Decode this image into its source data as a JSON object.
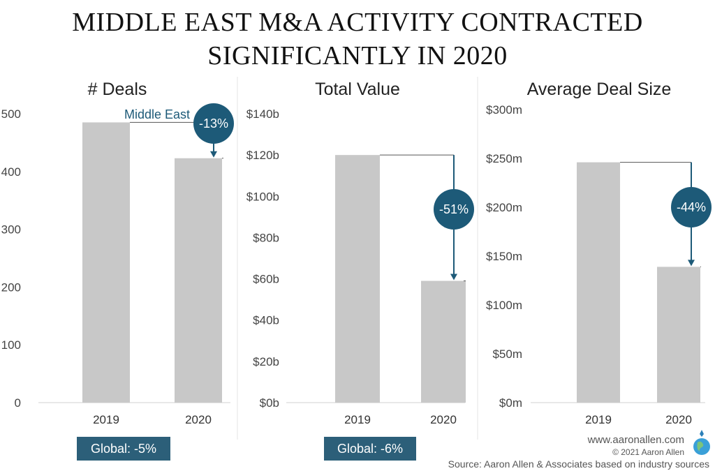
{
  "title": {
    "line1": "MIDDLE EAST M&A ACTIVITY CONTRACTED",
    "line2": "SIGNIFICANTLY IN 2020"
  },
  "colors": {
    "bar": "#c8c8c8",
    "accent": "#1d5a78",
    "badge": "#2c5f79"
  },
  "chart_data": [
    {
      "type": "bar",
      "title": "# Deals",
      "categories": [
        "2019",
        "2020"
      ],
      "values": [
        485,
        423
      ],
      "ylim": [
        0,
        500
      ],
      "yticks": [
        "0",
        "100",
        "200",
        "300",
        "400",
        "500"
      ],
      "change_label": "-13%",
      "region_label": "Middle East",
      "global_label": "Global: -5%"
    },
    {
      "type": "bar",
      "title": "Total Value",
      "categories": [
        "2019",
        "2020"
      ],
      "values": [
        120,
        59
      ],
      "ylim": [
        0,
        140
      ],
      "yticks": [
        "$0b",
        "$20b",
        "$40b",
        "$60b",
        "$80b",
        "$100b",
        "$120b",
        "$140b"
      ],
      "change_label": "-51%",
      "global_label": "Global: -6%"
    },
    {
      "type": "bar",
      "title": "Average Deal Size",
      "categories": [
        "2019",
        "2020"
      ],
      "values": [
        246,
        139
      ],
      "ylim": [
        0,
        300
      ],
      "yticks": [
        "$0m",
        "$50m",
        "$100m",
        "$150m",
        "$200m",
        "$250m",
        "$300m"
      ],
      "change_label": "-44%"
    }
  ],
  "footer": {
    "website": "www.aaronallen.com",
    "copyright": "© 2021 Aaron Allen",
    "source": "Source: Aaron Allen & Associates based on industry sources"
  }
}
